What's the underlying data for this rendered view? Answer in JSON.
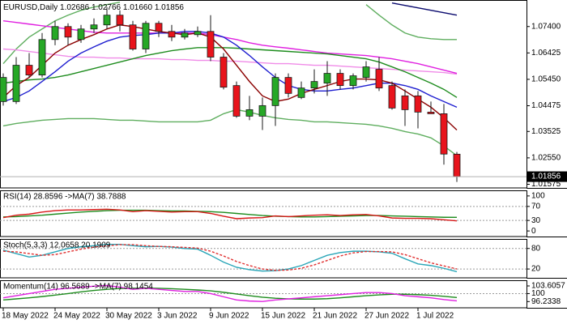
{
  "chart_data": [
    {
      "type": "candlestick",
      "title": "EURUSD,Daily",
      "header_values": [
        "1.02686",
        "1.02766",
        "1.01660",
        "1.01856"
      ],
      "categories": [
        "18 May 2022",
        null,
        null,
        null,
        "24 May 2022",
        null,
        null,
        null,
        "30 May 2022",
        null,
        null,
        null,
        "3 Jun 2022",
        null,
        null,
        null,
        "9 Jun 2022",
        null,
        null,
        null,
        "15 Jun 2022",
        null,
        null,
        null,
        "21 Jun 2022",
        null,
        null,
        null,
        "27 Jun 2022",
        null,
        null,
        null,
        "1 Jul 2022",
        null,
        null,
        null
      ],
      "open": [
        1.0463,
        1.0463,
        1.0597,
        1.0561,
        1.0692,
        1.074,
        1.0692,
        1.0731,
        1.0746,
        1.0782,
        1.0746,
        1.0657,
        1.0752,
        1.0722,
        1.0701,
        1.071,
        1.0722,
        1.0627,
        1.0522,
        1.0409,
        1.0409,
        1.0448,
        1.0552,
        1.0478,
        1.0513,
        1.0531,
        1.0567,
        1.0522,
        1.0552,
        1.0582,
        1.0522,
        1.0484,
        1.0484,
        1.0424,
        1.0418,
        1.02686
      ],
      "high": [
        1.0567,
        1.0627,
        1.0642,
        1.0716,
        1.0761,
        1.0752,
        1.0746,
        1.077,
        1.0812,
        1.08,
        1.0761,
        1.0761,
        1.0761,
        1.0746,
        1.0731,
        1.074,
        1.0782,
        1.0642,
        1.0537,
        1.0484,
        1.0478,
        1.0567,
        1.0567,
        1.0537,
        1.0582,
        1.0612,
        1.0582,
        1.0567,
        1.0612,
        1.0627,
        1.0537,
        1.0508,
        1.0502,
        1.0463,
        1.0454,
        1.02766
      ],
      "low": [
        1.0448,
        1.0454,
        1.0552,
        1.0552,
        1.0671,
        1.0671,
        1.068,
        1.0716,
        1.0731,
        1.0722,
        1.0651,
        1.0642,
        1.0701,
        1.0686,
        1.0692,
        1.0701,
        1.0612,
        1.0508,
        1.0403,
        1.0394,
        1.0358,
        1.0373,
        1.0478,
        1.0472,
        1.0493,
        1.0484,
        1.0508,
        1.0508,
        1.0537,
        1.0502,
        1.0433,
        1.0373,
        1.0364,
        1.0418,
        1.023,
        1.0166
      ],
      "close": [
        1.0552,
        1.0597,
        1.0561,
        1.0692,
        1.074,
        1.0701,
        1.0731,
        1.0746,
        1.0782,
        1.0746,
        1.0657,
        1.0752,
        1.0722,
        1.0701,
        1.0716,
        1.0722,
        1.0627,
        1.0516,
        1.0409,
        1.0433,
        1.0448,
        1.0552,
        1.0493,
        1.0513,
        1.0537,
        1.0567,
        1.0522,
        1.0558,
        1.0591,
        1.0513,
        1.0439,
        1.0433,
        1.0424,
        1.0418,
        1.0269,
        1.01856
      ],
      "up_color": "#26a826",
      "down_color": "#e8141c",
      "outline_color": "#1a1a1a",
      "overlays": [
        {
          "color": "#5fae5f",
          "values": [
            1.0603,
            1.0657,
            1.0701,
            1.0731,
            1.0761,
            1.0782,
            1.08,
            1.0812,
            1.0821,
            1.083,
            null,
            null,
            null,
            null,
            null,
            null,
            null,
            null,
            null,
            null,
            null,
            null,
            null,
            null,
            null,
            null,
            null,
            null,
            1.0821,
            1.0782,
            1.0746,
            1.0716,
            1.0701,
            1.0695,
            1.0692,
            1.0692
          ]
        },
        {
          "color": "#5fae5f",
          "values": [
            1.0373,
            1.0382,
            1.0388,
            1.0394,
            1.0397,
            1.04,
            1.04,
            1.04,
            1.0397,
            1.0394,
            1.0394,
            1.0391,
            1.0388,
            1.0388,
            1.0388,
            1.0388,
            1.0394,
            1.0418,
            1.0433,
            1.0424,
            1.0412,
            1.0403,
            1.0397,
            1.0394,
            1.0388,
            1.0388,
            1.0385,
            1.0382,
            1.0379,
            1.0373,
            1.0364,
            1.0352,
            1.0343,
            1.0329,
            1.0299,
            1.0263
          ]
        },
        {
          "color": "#f08ce8",
          "values": [
            1.0657,
            1.0654,
            1.0648,
            1.0642,
            1.0636,
            1.063,
            1.0627,
            1.0627,
            1.0624,
            1.0624,
            1.0621,
            1.0621,
            1.0621,
            1.0618,
            1.0618,
            1.0615,
            1.0615,
            1.0612,
            1.0612,
            1.0609,
            1.0606,
            1.0603,
            1.0603,
            1.06,
            1.0597,
            1.0597,
            1.0594,
            1.0591,
            1.0588,
            1.0585,
            1.0582,
            1.0579,
            1.0576,
            1.0573,
            1.057,
            1.0564
          ]
        },
        {
          "color": "#0a0a6e",
          "values": [
            null,
            null,
            null,
            null,
            null,
            null,
            null,
            null,
            null,
            null,
            null,
            null,
            null,
            null,
            null,
            null,
            null,
            null,
            null,
            null,
            null,
            null,
            null,
            null,
            null,
            null,
            null,
            null,
            null,
            null,
            1.0827,
            1.0818,
            1.0809,
            1.08,
            1.0791,
            1.0782
          ]
        },
        {
          "color": "#e020e0",
          "values": [
            1.0761,
            1.0755,
            1.0749,
            1.0743,
            1.0737,
            1.0731,
            1.0725,
            1.0719,
            1.0716,
            1.0716,
            1.0716,
            1.0716,
            1.0716,
            1.0716,
            1.0716,
            1.0716,
            1.071,
            1.0701,
            1.0692,
            1.068,
            1.0671,
            1.0665,
            1.066,
            1.0654,
            1.0648,
            1.0642,
            1.0639,
            1.0636,
            1.0633,
            1.0627,
            1.0621,
            1.0612,
            1.0603,
            1.0591,
            1.0579,
            1.0567
          ]
        },
        {
          "color": "#1e8c1e",
          "values": [
            1.0531,
            1.0537,
            1.0543,
            1.0546,
            1.0552,
            1.0561,
            1.0573,
            1.0585,
            1.0597,
            1.0609,
            1.0621,
            1.0633,
            1.0642,
            1.0651,
            1.0657,
            1.0662,
            1.0662,
            1.0662,
            1.066,
            1.0657,
            1.0654,
            1.0651,
            1.0648,
            1.0645,
            1.0642,
            1.0639,
            1.0633,
            1.0627,
            1.0621,
            1.0609,
            1.0591,
            1.0573,
            1.0552,
            1.0531,
            1.0508,
            1.0478
          ]
        },
        {
          "color": "#1f1fd0",
          "values": [
            1.0463,
            1.0478,
            1.0502,
            1.0537,
            1.0573,
            1.0612,
            1.0642,
            1.0665,
            1.0686,
            1.0701,
            1.0707,
            1.071,
            1.0716,
            1.0716,
            1.0722,
            1.0722,
            1.0716,
            1.0701,
            1.0671,
            1.0633,
            1.0591,
            1.0552,
            1.0522,
            1.0508,
            1.0502,
            1.0502,
            1.0508,
            1.0513,
            1.0522,
            1.0531,
            1.0531,
            1.0522,
            1.0508,
            1.0484,
            1.0463,
            1.0442
          ]
        },
        {
          "color": "#8b0000",
          "values": [
            1.0478,
            1.0522,
            1.0552,
            1.0597,
            1.0642,
            1.0671,
            1.0692,
            1.071,
            1.0731,
            1.0746,
            1.074,
            1.0731,
            1.0722,
            1.0716,
            1.071,
            1.0716,
            1.0701,
            1.0657,
            1.0597,
            1.0537,
            1.0484,
            1.0463,
            1.0472,
            1.0493,
            1.0508,
            1.0522,
            1.0537,
            1.0546,
            1.0546,
            1.0543,
            1.0531,
            1.0502,
            1.0472,
            1.0442,
            1.0403,
            1.0358
          ]
        }
      ],
      "ylim": [
        1.0144,
        1.0835
      ],
      "yticks": [
        {
          "value": 1.074,
          "label": "1.07400"
        },
        {
          "value": 1.06425,
          "label": "1.06425"
        },
        {
          "value": 1.0545,
          "label": "1.05450"
        },
        {
          "value": 1.04475,
          "label": "1.04475"
        },
        {
          "value": 1.03525,
          "label": "1.03525"
        },
        {
          "value": 1.0255,
          "label": "1.02550"
        },
        {
          "value": 1.01575,
          "label": "1.01575"
        }
      ],
      "last_price_color": "#000000"
    },
    {
      "type": "line",
      "title": "RSI(14) 28.8596  ->MA(7) 38.7888",
      "series": [
        {
          "color": "#1e8c1e",
          "values": [
            40,
            41,
            43,
            45,
            48,
            51,
            54,
            56,
            58,
            59,
            59,
            59,
            58,
            57,
            57,
            56,
            55,
            53,
            50,
            47,
            44,
            42,
            41,
            40,
            40,
            41,
            42,
            43,
            44,
            44,
            43,
            42,
            41,
            40,
            39,
            38.7888
          ]
        },
        {
          "color": "#d81818",
          "values": [
            38,
            45,
            48,
            54,
            58,
            60,
            60,
            61,
            62,
            60,
            55,
            58,
            56,
            54,
            55,
            55,
            50,
            42,
            35,
            37,
            38,
            43,
            41,
            43,
            45,
            46,
            44,
            46,
            47,
            43,
            37,
            36,
            36,
            35,
            32,
            28.8596
          ]
        }
      ],
      "ylim": [
        -15.9,
        113.6
      ],
      "yticks": [
        100,
        70,
        30,
        0
      ],
      "levels": [
        70,
        30
      ]
    },
    {
      "type": "line",
      "title": "Stoch(5,3,3) 12.0658 20.1909",
      "series": [
        {
          "color": "#2aa6b8",
          "values": [
            75,
            65,
            55,
            60,
            70,
            80,
            85,
            88,
            92,
            92,
            88,
            85,
            86,
            84,
            80,
            78,
            60,
            40,
            25,
            18,
            14,
            15,
            20,
            30,
            45,
            60,
            68,
            72,
            72,
            70,
            66,
            50,
            35,
            30,
            22,
            12.0658
          ]
        },
        {
          "color": "#e03030",
          "dashed": true,
          "values": [
            72,
            70,
            65,
            60,
            62,
            70,
            78,
            84,
            88,
            91,
            91,
            88,
            86,
            85,
            83,
            81,
            72,
            58,
            42,
            30,
            20,
            16,
            17,
            22,
            32,
            45,
            58,
            67,
            71,
            71,
            70,
            62,
            50,
            38,
            29,
            20.1909
          ]
        }
      ],
      "ylim": [
        -5.8,
        105.4
      ],
      "yticks": [
        80,
        20
      ],
      "levels": [
        80,
        20
      ]
    },
    {
      "type": "line",
      "title": "Momentum(14) 96.5689  ->MA(7) 98.1454",
      "series": [
        {
          "color": "#1e8c1e",
          "values": [
            97,
            97.5,
            98,
            98.6,
            99.3,
            100,
            100.8,
            101.5,
            102,
            102.4,
            102.5,
            102.6,
            102.5,
            102.3,
            102,
            101.7,
            101.3,
            100.6,
            99.8,
            99,
            98.3,
            97.8,
            97.5,
            97.4,
            97.4,
            97.6,
            98,
            98.5,
            99,
            99.4,
            99.7,
            99.7,
            99.5,
            99.2,
            98.7,
            98.1454
          ]
        },
        {
          "color": "#e020e0",
          "values": [
            98,
            99,
            100,
            101,
            102,
            102.5,
            103,
            103.5,
            103.8,
            103,
            102,
            102.5,
            102,
            101.5,
            101,
            101,
            100,
            98.5,
            97,
            96.5,
            96.3,
            97,
            97.5,
            98,
            98.5,
            99,
            99.5,
            100,
            100.5,
            100.5,
            100,
            99,
            98.5,
            98,
            97.2,
            96.5689
          ]
        }
      ],
      "ylim": [
        93.3,
        105.9
      ],
      "yticks": [
        103.6057,
        100,
        96.2338
      ],
      "levels": [
        100
      ]
    }
  ]
}
